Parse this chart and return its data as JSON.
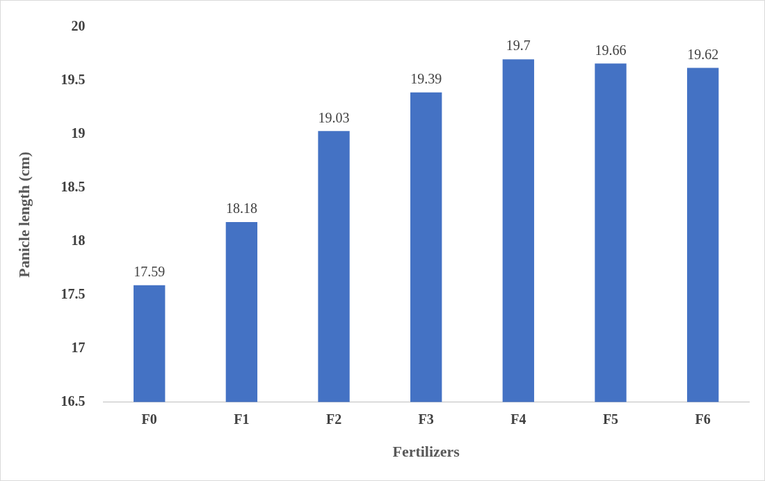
{
  "chart_data": {
    "type": "bar",
    "xlabel": "Fertilizers",
    "ylabel": "Panicle length (cm)",
    "categories": [
      "F0",
      "F1",
      "F2",
      "F3",
      "F4",
      "F5",
      "F6"
    ],
    "values": [
      17.59,
      18.18,
      19.03,
      19.39,
      19.7,
      19.66,
      19.62
    ],
    "color": "#4472c4",
    "ylim": [
      16.5,
      20
    ],
    "yticks": [
      16.5,
      17,
      17.5,
      18,
      18.5,
      19,
      19.5,
      20
    ],
    "grid": false,
    "legend": false,
    "data_labels": true
  }
}
